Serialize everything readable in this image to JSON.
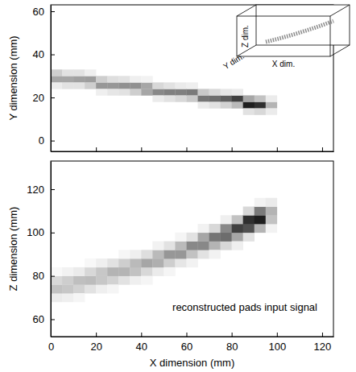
{
  "chart_data": [
    {
      "type": "heatmap",
      "y_label": "Y dimension (mm)",
      "inset_labels": [
        "Z dim.",
        "Y dim.",
        "X dim."
      ],
      "xlim": [
        0,
        125
      ],
      "xticks": [
        0,
        20,
        40,
        60,
        80,
        100,
        120
      ],
      "ylim": [
        -5,
        63
      ],
      "yticks": [
        0,
        20,
        40,
        60
      ],
      "tick_labels": "y",
      "cell_width": 5,
      "cell_height": 3,
      "cells": [
        [
          2.5,
          28.5,
          0.45
        ],
        [
          2.5,
          31.5,
          0.3
        ],
        [
          2.5,
          25.5,
          0.15
        ],
        [
          7.5,
          28.5,
          0.45
        ],
        [
          7.5,
          31.5,
          0.2
        ],
        [
          7.5,
          25.5,
          0.2
        ],
        [
          12.5,
          28.5,
          0.47
        ],
        [
          12.5,
          25.5,
          0.2
        ],
        [
          12.5,
          31.5,
          0.2
        ],
        [
          17.5,
          28.5,
          0.48
        ],
        [
          17.5,
          25.5,
          0.3
        ],
        [
          17.5,
          31.5,
          0.12
        ],
        [
          22.5,
          25.5,
          0.5
        ],
        [
          22.5,
          28.5,
          0.3
        ],
        [
          22.5,
          22.5,
          0.12
        ],
        [
          27.5,
          25.5,
          0.5
        ],
        [
          27.5,
          28.5,
          0.22
        ],
        [
          27.5,
          22.5,
          0.18
        ],
        [
          32.5,
          25.5,
          0.52
        ],
        [
          32.5,
          22.5,
          0.2
        ],
        [
          32.5,
          28.5,
          0.2
        ],
        [
          37.5,
          25.5,
          0.52
        ],
        [
          37.5,
          22.5,
          0.3
        ],
        [
          37.5,
          28.5,
          0.12
        ],
        [
          42.5,
          25.5,
          0.45
        ],
        [
          42.5,
          22.5,
          0.45
        ],
        [
          42.5,
          28.5,
          0.1
        ],
        [
          47.5,
          22.5,
          0.55
        ],
        [
          47.5,
          25.5,
          0.25
        ],
        [
          47.5,
          19.5,
          0.15
        ],
        [
          52.5,
          22.5,
          0.58
        ],
        [
          52.5,
          19.5,
          0.2
        ],
        [
          52.5,
          25.5,
          0.2
        ],
        [
          57.5,
          22.5,
          0.58
        ],
        [
          57.5,
          19.5,
          0.25
        ],
        [
          57.5,
          25.5,
          0.15
        ],
        [
          62.5,
          22.5,
          0.6
        ],
        [
          62.5,
          19.5,
          0.32
        ],
        [
          62.5,
          25.5,
          0.12
        ],
        [
          67.5,
          19.5,
          0.62
        ],
        [
          67.5,
          22.5,
          0.32
        ],
        [
          67.5,
          16.5,
          0.15
        ],
        [
          72.5,
          19.5,
          0.65
        ],
        [
          72.5,
          22.5,
          0.25
        ],
        [
          72.5,
          16.5,
          0.2
        ],
        [
          77.5,
          19.5,
          0.7
        ],
        [
          77.5,
          16.5,
          0.28
        ],
        [
          77.5,
          22.5,
          0.18
        ],
        [
          82.5,
          19.5,
          0.8
        ],
        [
          82.5,
          16.5,
          0.38
        ],
        [
          82.5,
          22.5,
          0.15
        ],
        [
          87.5,
          16.5,
          0.9
        ],
        [
          87.5,
          19.5,
          0.45
        ],
        [
          87.5,
          13.5,
          0.2
        ],
        [
          92.5,
          16.5,
          0.85
        ],
        [
          92.5,
          19.5,
          0.35
        ],
        [
          92.5,
          13.5,
          0.25
        ],
        [
          97.5,
          16.5,
          0.4
        ],
        [
          97.5,
          19.5,
          0.15
        ],
        [
          97.5,
          13.5,
          0.15
        ]
      ]
    },
    {
      "type": "heatmap",
      "x_label": "X dimension (mm)",
      "y_label": "Z dimension (mm)",
      "annotation": "reconstructed pads input signal",
      "xlim": [
        0,
        125
      ],
      "xticks": [
        0,
        20,
        40,
        60,
        80,
        100,
        120
      ],
      "ylim": [
        52,
        133
      ],
      "yticks": [
        60,
        80,
        100,
        120
      ],
      "cell_width": 5,
      "cell_height": 4,
      "cells": [
        [
          2.5,
          70,
          0.15
        ],
        [
          2.5,
          74,
          0.35
        ],
        [
          2.5,
          78,
          0.25
        ],
        [
          2.5,
          82,
          0.06
        ],
        [
          7.5,
          70,
          0.12
        ],
        [
          7.5,
          74,
          0.33
        ],
        [
          7.5,
          78,
          0.3
        ],
        [
          7.5,
          82,
          0.1
        ],
        [
          12.5,
          74,
          0.28
        ],
        [
          12.5,
          78,
          0.36
        ],
        [
          12.5,
          82,
          0.15
        ],
        [
          12.5,
          70,
          0.08
        ],
        [
          17.5,
          74,
          0.2
        ],
        [
          17.5,
          78,
          0.37
        ],
        [
          17.5,
          82,
          0.25
        ],
        [
          17.5,
          86,
          0.06
        ],
        [
          22.5,
          74,
          0.12
        ],
        [
          22.5,
          78,
          0.33
        ],
        [
          22.5,
          82,
          0.33
        ],
        [
          22.5,
          86,
          0.12
        ],
        [
          27.5,
          78,
          0.28
        ],
        [
          27.5,
          82,
          0.4
        ],
        [
          27.5,
          86,
          0.2
        ],
        [
          27.5,
          74,
          0.08
        ],
        [
          32.5,
          78,
          0.2
        ],
        [
          32.5,
          82,
          0.4
        ],
        [
          32.5,
          86,
          0.3
        ],
        [
          32.5,
          90,
          0.07
        ],
        [
          37.5,
          78,
          0.12
        ],
        [
          37.5,
          82,
          0.35
        ],
        [
          37.5,
          86,
          0.38
        ],
        [
          37.5,
          90,
          0.12
        ],
        [
          42.5,
          82,
          0.25
        ],
        [
          42.5,
          86,
          0.45
        ],
        [
          42.5,
          90,
          0.22
        ],
        [
          42.5,
          78,
          0.08
        ],
        [
          47.5,
          82,
          0.15
        ],
        [
          47.5,
          86,
          0.42
        ],
        [
          47.5,
          90,
          0.38
        ],
        [
          47.5,
          94,
          0.1
        ],
        [
          52.5,
          86,
          0.3
        ],
        [
          52.5,
          90,
          0.5
        ],
        [
          52.5,
          94,
          0.2
        ],
        [
          52.5,
          82,
          0.08
        ],
        [
          57.5,
          86,
          0.18
        ],
        [
          57.5,
          90,
          0.5
        ],
        [
          57.5,
          94,
          0.38
        ],
        [
          57.5,
          98,
          0.08
        ],
        [
          62.5,
          90,
          0.35
        ],
        [
          62.5,
          94,
          0.55
        ],
        [
          62.5,
          98,
          0.2
        ],
        [
          62.5,
          86,
          0.1
        ],
        [
          67.5,
          90,
          0.2
        ],
        [
          67.5,
          94,
          0.55
        ],
        [
          67.5,
          98,
          0.45
        ],
        [
          67.5,
          102,
          0.1
        ],
        [
          72.5,
          94,
          0.4
        ],
        [
          72.5,
          98,
          0.62
        ],
        [
          72.5,
          102,
          0.25
        ],
        [
          72.5,
          90,
          0.1
        ],
        [
          77.5,
          94,
          0.25
        ],
        [
          77.5,
          98,
          0.65
        ],
        [
          77.5,
          102,
          0.55
        ],
        [
          77.5,
          106,
          0.12
        ],
        [
          82.5,
          98,
          0.45
        ],
        [
          82.5,
          102,
          0.8
        ],
        [
          82.5,
          106,
          0.35
        ],
        [
          82.5,
          94,
          0.12
        ],
        [
          87.5,
          98,
          0.2
        ],
        [
          87.5,
          102,
          0.75
        ],
        [
          87.5,
          106,
          0.85
        ],
        [
          87.5,
          110,
          0.25
        ],
        [
          92.5,
          102,
          0.4
        ],
        [
          92.5,
          106,
          0.9
        ],
        [
          92.5,
          110,
          0.6
        ],
        [
          92.5,
          114,
          0.1
        ],
        [
          97.5,
          102,
          0.1
        ],
        [
          97.5,
          106,
          0.35
        ],
        [
          97.5,
          110,
          0.4
        ],
        [
          97.5,
          114,
          0.15
        ]
      ]
    }
  ]
}
